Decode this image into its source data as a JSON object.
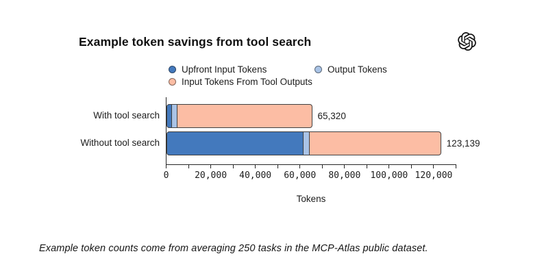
{
  "header": {
    "title": "Example token savings from tool search",
    "logo_icon": "openai-logo"
  },
  "legend": {
    "columns": [
      {
        "items": [
          {
            "label": "Upfront Input Tokens",
            "color": "#4379bd"
          },
          {
            "label": "Input Tokens From Tool Outputs",
            "color": "#fcbda4"
          }
        ]
      },
      {
        "items": [
          {
            "label": "Output Tokens",
            "color": "#a9c3e6"
          }
        ]
      }
    ]
  },
  "chart_data": {
    "type": "bar",
    "orientation": "horizontal_stacked",
    "categories": [
      "With tool search",
      "Without tool search"
    ],
    "series": [
      {
        "name": "Upfront Input Tokens",
        "color": "#4379bd",
        "values": [
          2500,
          61600
        ]
      },
      {
        "name": "Output Tokens",
        "color": "#a9c3e6",
        "values": [
          2500,
          2500
        ]
      },
      {
        "name": "Input Tokens From Tool Outputs",
        "color": "#fcbda4",
        "values": [
          60320,
          59039
        ]
      }
    ],
    "totals": [
      65320,
      123139
    ],
    "total_labels": [
      "65,320",
      "123,139"
    ],
    "xlabel": "Tokens",
    "xlim": [
      0,
      130000
    ],
    "xticks": {
      "values": [
        0,
        20000,
        40000,
        60000,
        80000,
        100000,
        120000
      ],
      "labels": [
        "0",
        "20,000",
        "40,000",
        "60,000",
        "80,000",
        "100,000",
        "120,000"
      ]
    },
    "minor_tick_step": 10000,
    "grid": false,
    "legend_position": "top",
    "edge_color": "#404040",
    "axis_color": "#262626"
  },
  "footnote": "Example token counts come from averaging 250 tasks in the MCP-Atlas public dataset."
}
